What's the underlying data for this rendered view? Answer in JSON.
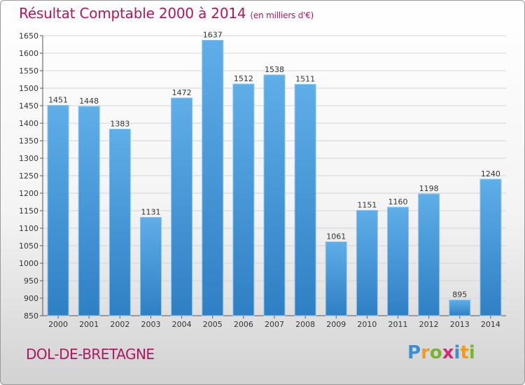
{
  "header": {
    "title": "Résultat Comptable 2000 à 2014",
    "subtitle": "(en milliers d'€)"
  },
  "footer": {
    "commune": "DOL-DE-BRETAGNE",
    "logo": [
      "P",
      "r",
      "o",
      "x",
      "i",
      "t",
      "i"
    ]
  },
  "colors": {
    "bar_light": "#5faee8",
    "bar_dark": "#2f7fc4",
    "accent": "#b0175f"
  },
  "chart_data": {
    "type": "bar",
    "title": "Résultat Comptable 2000 à 2014",
    "subtitle": "(en milliers d'€)",
    "xlabel": "",
    "ylabel": "",
    "categories": [
      "2000",
      "2001",
      "2002",
      "2003",
      "2004",
      "2005",
      "2006",
      "2007",
      "2008",
      "2009",
      "2010",
      "2011",
      "2012",
      "2013",
      "2014"
    ],
    "values": [
      1451,
      1448,
      1383,
      1131,
      1472,
      1637,
      1512,
      1538,
      1511,
      1061,
      1151,
      1160,
      1198,
      895,
      1240
    ],
    "ylim": [
      850,
      1650
    ],
    "yticks": [
      850,
      900,
      950,
      1000,
      1050,
      1100,
      1150,
      1200,
      1250,
      1300,
      1350,
      1400,
      1450,
      1500,
      1550,
      1600,
      1650
    ],
    "grid": true
  }
}
